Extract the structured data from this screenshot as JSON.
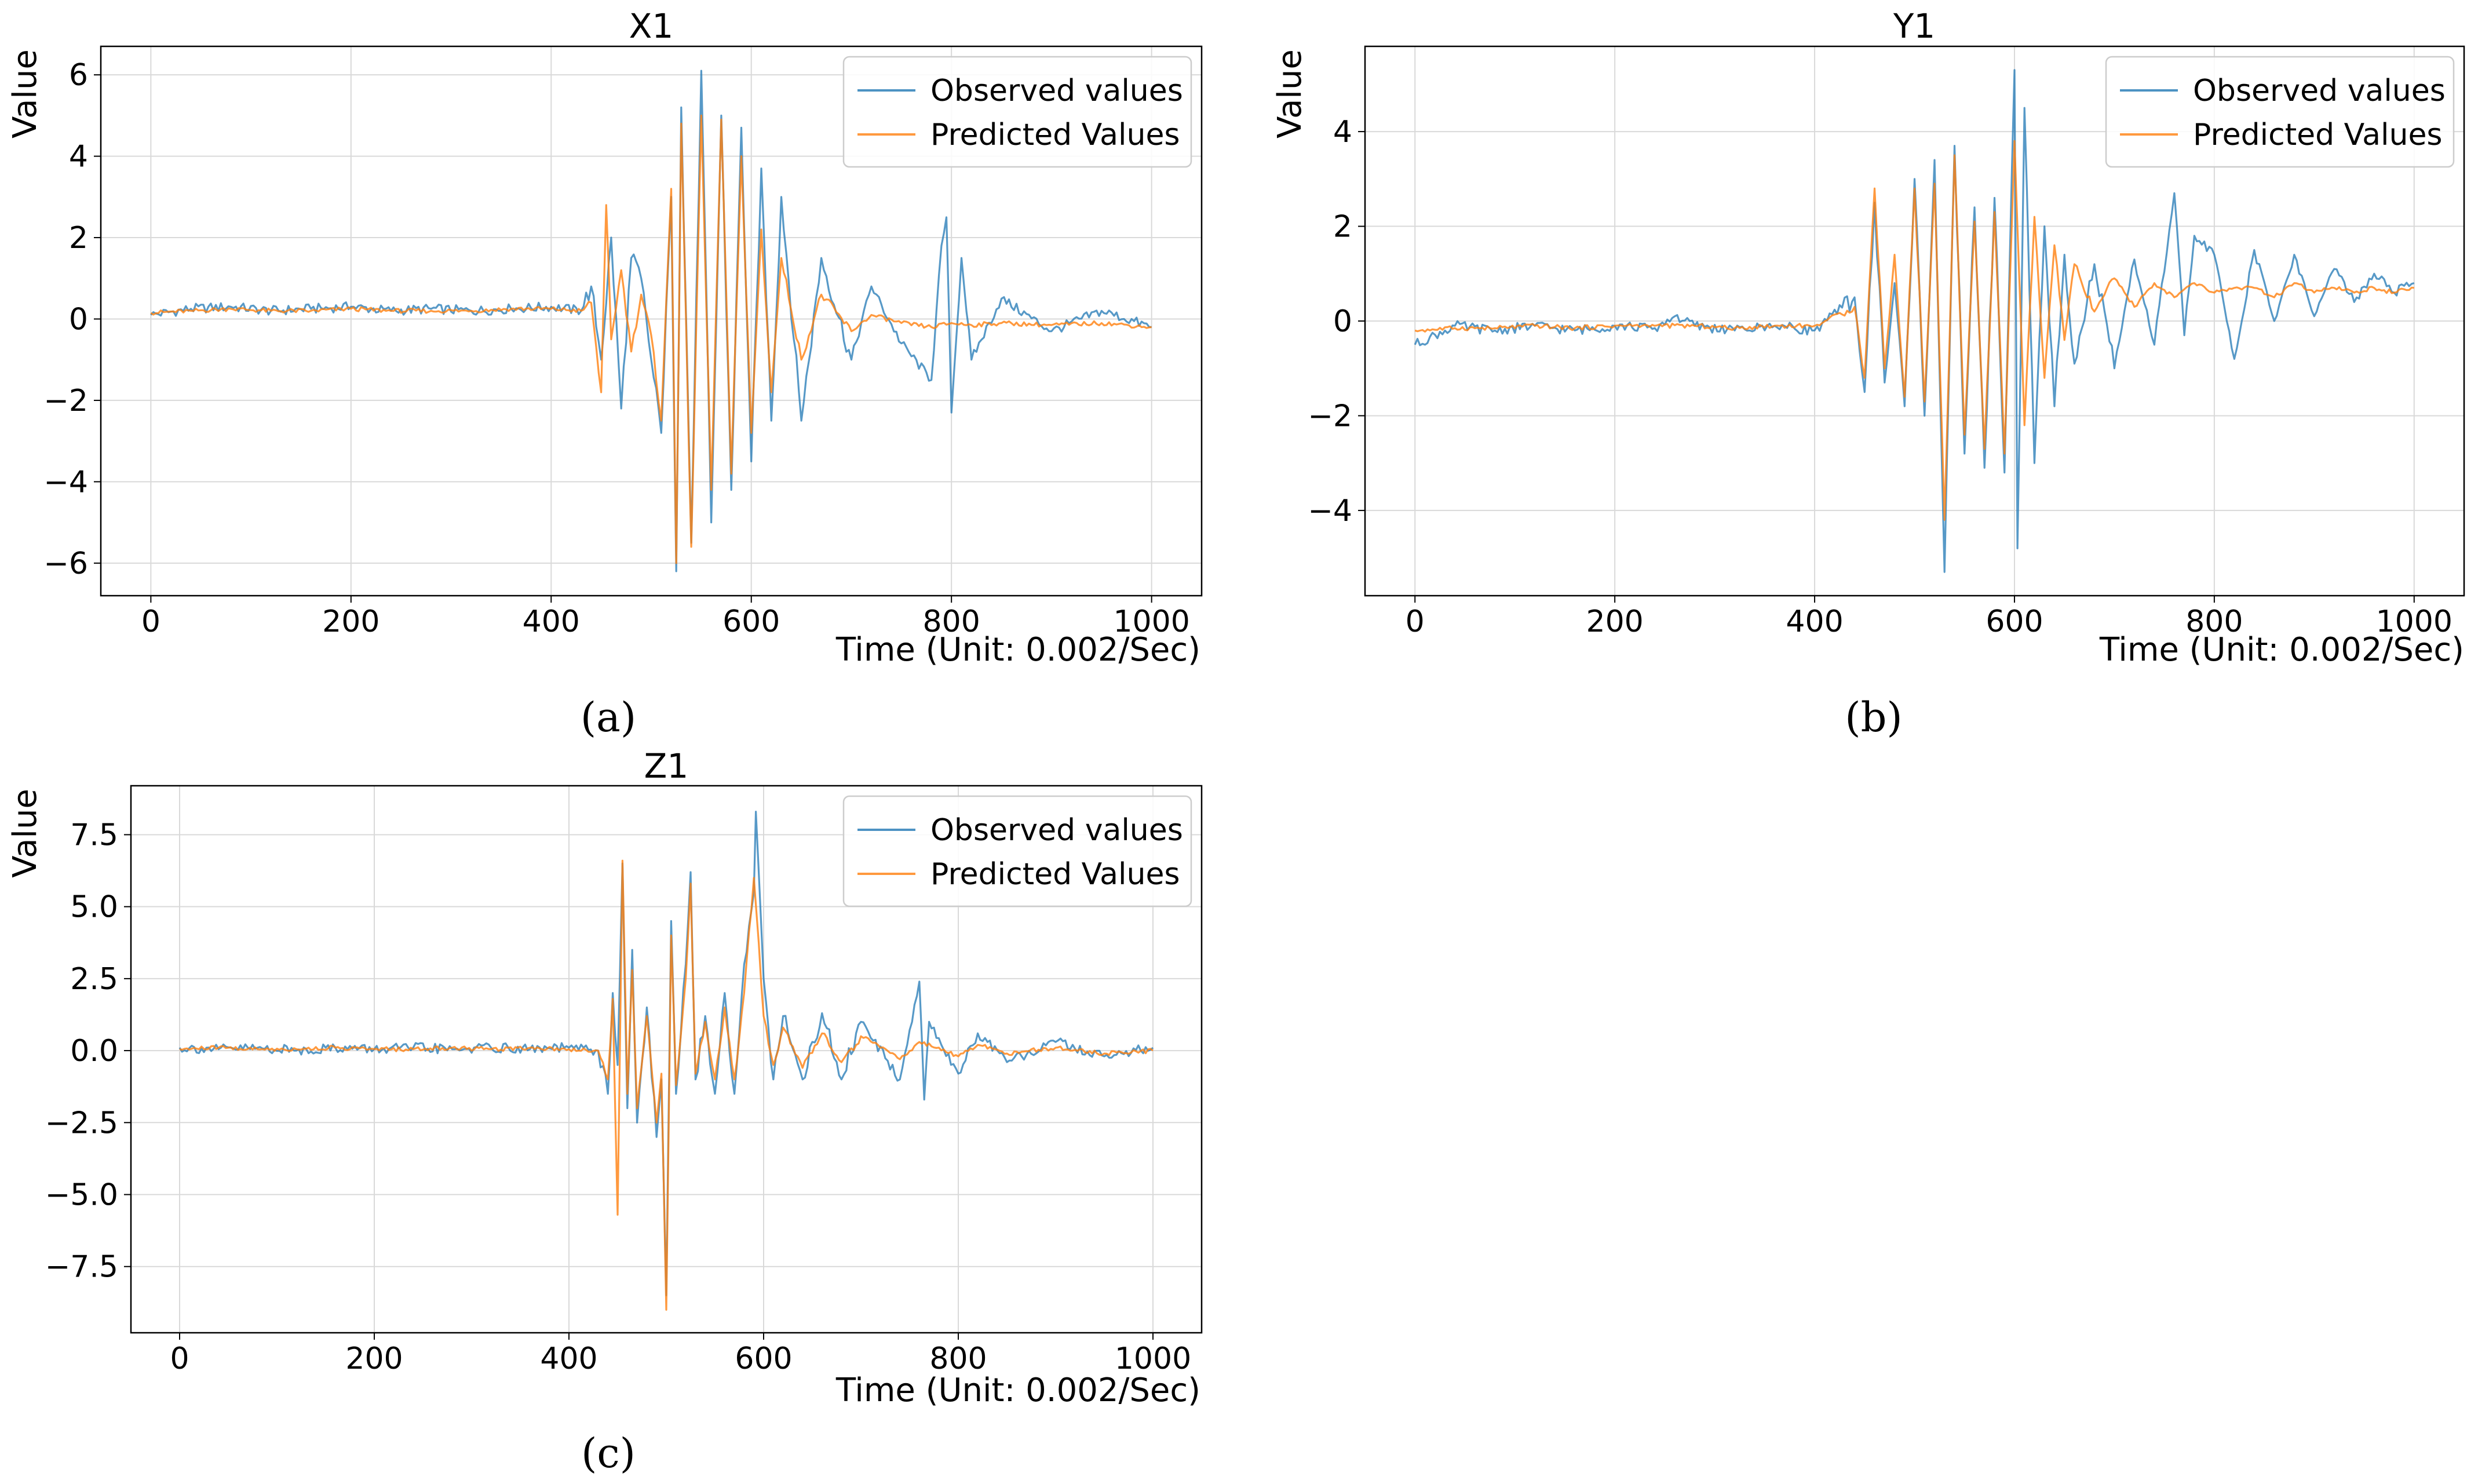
{
  "figure": {
    "series_colors": {
      "observed": "#1f77b4",
      "predicted": "#ff7f0e"
    },
    "grid_color": "#d9d9d9"
  },
  "chart_data": [
    {
      "id": "a",
      "type": "line",
      "title": "X1",
      "caption": "(a)",
      "xlabel": "Time (Unit: 0.002/Sec)",
      "ylabel": "Value",
      "xlim": [
        -50,
        1050
      ],
      "ylim": [
        -6.8,
        6.7
      ],
      "xticks": [
        0,
        200,
        400,
        600,
        800,
        1000
      ],
      "xtick_labels": [
        "0",
        "200",
        "400",
        "600",
        "800",
        "1000"
      ],
      "yticks": [
        -6,
        -4,
        -2,
        0,
        2,
        4,
        6
      ],
      "ytick_labels": [
        "−6",
        "−4",
        "−2",
        "0",
        "2",
        "4",
        "6"
      ],
      "grid": true,
      "legend": {
        "position": "top-right",
        "labels": [
          "Observed values",
          "Predicted Values"
        ]
      },
      "series": [
        {
          "name": "Observed values",
          "color": "#1f77b4",
          "x": [
            0,
            40,
            80,
            120,
            160,
            200,
            240,
            280,
            320,
            360,
            400,
            430,
            440,
            450,
            460,
            470,
            480,
            490,
            500,
            510,
            520,
            525,
            530,
            540,
            550,
            560,
            570,
            580,
            590,
            600,
            610,
            620,
            630,
            650,
            670,
            700,
            720,
            750,
            780,
            790,
            795,
            800,
            810,
            820,
            850,
            900,
            950,
            1000
          ],
          "values": [
            0.1,
            0.25,
            0.3,
            0.2,
            0.25,
            0.3,
            0.2,
            0.25,
            0.2,
            0.25,
            0.3,
            0.2,
            0.8,
            -1.0,
            2.0,
            -2.2,
            1.5,
            1.0,
            -1.0,
            -2.8,
            3.0,
            -6.2,
            5.2,
            -5.5,
            6.1,
            -5.0,
            5.0,
            -4.2,
            4.7,
            -3.5,
            3.7,
            -2.5,
            3.0,
            -2.5,
            1.5,
            -1.0,
            0.8,
            -0.6,
            -1.5,
            1.8,
            2.5,
            -2.3,
            1.5,
            -1.0,
            0.5,
            -0.3,
            0.2,
            -0.2
          ]
        },
        {
          "name": "Predicted Values",
          "color": "#ff7f0e",
          "x": [
            0,
            40,
            80,
            120,
            160,
            200,
            240,
            280,
            320,
            360,
            400,
            430,
            440,
            450,
            455,
            460,
            470,
            480,
            490,
            500,
            510,
            520,
            525,
            530,
            540,
            550,
            560,
            570,
            580,
            590,
            600,
            610,
            620,
            630,
            650,
            670,
            700,
            720,
            750,
            780,
            800,
            820,
            850,
            900,
            950,
            1000
          ],
          "values": [
            0.15,
            0.2,
            0.25,
            0.2,
            0.2,
            0.25,
            0.2,
            0.2,
            0.2,
            0.25,
            0.25,
            0.2,
            0.4,
            -1.8,
            2.8,
            -0.5,
            1.2,
            -0.8,
            0.6,
            -0.4,
            -2.5,
            3.2,
            -6.0,
            4.8,
            -5.6,
            5.0,
            -4.2,
            4.9,
            -3.8,
            4.0,
            -2.8,
            2.2,
            -1.8,
            1.5,
            -1.0,
            0.6,
            -0.3,
            0.1,
            -0.1,
            -0.2,
            -0.1,
            -0.15,
            -0.1,
            -0.15,
            -0.1,
            -0.2
          ]
        }
      ]
    },
    {
      "id": "b",
      "type": "line",
      "title": "Y1",
      "caption": "(b)",
      "xlabel": "Time (Unit: 0.002/Sec)",
      "ylabel": "Value",
      "xlim": [
        -50,
        1050
      ],
      "ylim": [
        -5.8,
        5.8
      ],
      "xticks": [
        0,
        200,
        400,
        600,
        800,
        1000
      ],
      "xtick_labels": [
        "0",
        "200",
        "400",
        "600",
        "800",
        "1000"
      ],
      "yticks": [
        -4,
        -2,
        0,
        2,
        4
      ],
      "ytick_labels": [
        "−4",
        "−2",
        "0",
        "2",
        "4"
      ],
      "grid": true,
      "legend": {
        "position": "top-right",
        "labels": [
          "Observed values",
          "Predicted Values"
        ]
      },
      "series": [
        {
          "name": "Observed values",
          "color": "#1f77b4",
          "x": [
            0,
            40,
            80,
            120,
            160,
            200,
            240,
            260,
            280,
            320,
            360,
            400,
            440,
            450,
            460,
            470,
            480,
            490,
            500,
            510,
            520,
            530,
            540,
            550,
            560,
            570,
            580,
            590,
            600,
            603,
            610,
            620,
            630,
            640,
            650,
            660,
            680,
            700,
            720,
            740,
            760,
            770,
            780,
            800,
            820,
            840,
            860,
            880,
            900,
            920,
            940,
            960,
            980,
            1000
          ],
          "values": [
            -0.5,
            -0.1,
            -0.2,
            -0.1,
            -0.2,
            -0.1,
            -0.15,
            0.1,
            -0.1,
            -0.2,
            -0.1,
            -0.2,
            0.5,
            -1.5,
            2.5,
            -1.3,
            0.8,
            -1.8,
            3.0,
            -2.0,
            3.4,
            -5.3,
            3.7,
            -2.8,
            2.4,
            -3.1,
            2.6,
            -3.2,
            5.3,
            -4.8,
            4.5,
            -3.0,
            2.0,
            -1.8,
            1.4,
            -0.9,
            1.2,
            -1.0,
            1.3,
            -0.5,
            2.7,
            -0.3,
            1.8,
            1.4,
            -0.8,
            1.5,
            0.0,
            1.4,
            0.1,
            1.1,
            0.4,
            1.0,
            0.6,
            0.8
          ]
        },
        {
          "name": "Predicted Values",
          "color": "#ff7f0e",
          "x": [
            0,
            40,
            80,
            120,
            160,
            200,
            240,
            280,
            320,
            360,
            400,
            440,
            450,
            460,
            470,
            480,
            490,
            500,
            510,
            520,
            530,
            540,
            550,
            560,
            570,
            580,
            590,
            600,
            610,
            620,
            630,
            640,
            650,
            660,
            680,
            700,
            720,
            740,
            760,
            780,
            800,
            820,
            840,
            860,
            880,
            900,
            920,
            940,
            960,
            980,
            1000
          ],
          "values": [
            -0.2,
            -0.15,
            -0.15,
            -0.1,
            -0.15,
            -0.1,
            -0.1,
            -0.1,
            -0.15,
            -0.1,
            -0.1,
            0.3,
            -1.2,
            2.8,
            -1.0,
            1.4,
            -1.6,
            2.8,
            -1.7,
            2.9,
            -4.2,
            3.5,
            -2.4,
            2.1,
            -2.7,
            2.3,
            -2.8,
            3.8,
            -2.2,
            2.2,
            -1.2,
            1.6,
            -0.4,
            1.2,
            0.2,
            0.9,
            0.3,
            0.8,
            0.5,
            0.8,
            0.6,
            0.7,
            0.7,
            0.5,
            0.8,
            0.6,
            0.7,
            0.6,
            0.7,
            0.6,
            0.7
          ]
        }
      ]
    },
    {
      "id": "c",
      "type": "line",
      "title": "Z1",
      "caption": "(c)",
      "xlabel": "Time (Unit: 0.002/Sec)",
      "ylabel": "Value",
      "xlim": [
        -50,
        1050
      ],
      "ylim": [
        -9.8,
        9.2
      ],
      "xticks": [
        0,
        200,
        400,
        600,
        800,
        1000
      ],
      "xtick_labels": [
        "0",
        "200",
        "400",
        "600",
        "800",
        "1000"
      ],
      "yticks": [
        -7.5,
        -5.0,
        -2.5,
        0.0,
        2.5,
        5.0,
        7.5
      ],
      "ytick_labels": [
        "−7.5",
        "−5.0",
        "−2.5",
        "0.0",
        "2.5",
        "5.0",
        "7.5"
      ],
      "grid": true,
      "legend": {
        "position": "top-right",
        "labels": [
          "Observed values",
          "Predicted Values"
        ]
      },
      "series": [
        {
          "name": "Observed values",
          "color": "#1f77b4",
          "x": [
            0,
            40,
            80,
            120,
            160,
            200,
            240,
            280,
            320,
            360,
            400,
            430,
            440,
            445,
            450,
            455,
            460,
            465,
            470,
            480,
            490,
            495,
            500,
            505,
            510,
            520,
            525,
            530,
            540,
            550,
            560,
            570,
            580,
            590,
            592,
            600,
            610,
            620,
            640,
            660,
            680,
            700,
            740,
            760,
            765,
            770,
            800,
            820,
            850,
            900,
            950,
            1000
          ],
          "values": [
            0.1,
            0.05,
            0.1,
            0.0,
            0.1,
            0.05,
            0.1,
            0.05,
            0.1,
            0.05,
            0.1,
            0.0,
            -1.5,
            2.0,
            -0.5,
            6.5,
            -2.0,
            3.5,
            -2.5,
            1.5,
            -3.0,
            -1.0,
            -8.5,
            4.5,
            -1.5,
            3.0,
            6.2,
            -1.0,
            1.2,
            -1.5,
            2.0,
            -1.5,
            3.0,
            5.5,
            8.3,
            2.5,
            -1.0,
            1.2,
            -1.0,
            1.3,
            -1.0,
            1.0,
            -1.0,
            2.4,
            -1.7,
            1.0,
            -0.8,
            0.6,
            -0.4,
            0.3,
            -0.2,
            0.1
          ]
        },
        {
          "name": "Predicted Values",
          "color": "#ff7f0e",
          "x": [
            0,
            40,
            80,
            120,
            160,
            200,
            240,
            280,
            320,
            360,
            400,
            430,
            440,
            445,
            450,
            455,
            460,
            465,
            470,
            480,
            490,
            495,
            500,
            505,
            510,
            520,
            525,
            530,
            540,
            550,
            560,
            570,
            580,
            590,
            600,
            610,
            620,
            640,
            660,
            680,
            700,
            740,
            760,
            800,
            820,
            850,
            900,
            950,
            1000
          ],
          "values": [
            0.05,
            0.1,
            0.05,
            0.05,
            0.1,
            0.05,
            0.05,
            0.1,
            0.05,
            0.1,
            0.05,
            0.0,
            -1.0,
            1.8,
            -5.7,
            6.6,
            -1.5,
            2.8,
            -2.0,
            1.2,
            -2.5,
            -0.8,
            -9.0,
            4.0,
            -1.2,
            2.5,
            5.8,
            -0.8,
            1.0,
            -1.0,
            1.5,
            -1.0,
            2.0,
            6.0,
            1.2,
            -0.5,
            0.8,
            -0.6,
            0.6,
            -0.4,
            0.5,
            -0.3,
            0.3,
            -0.2,
            0.2,
            -0.1,
            0.1,
            -0.1,
            0.0
          ]
        }
      ]
    }
  ]
}
